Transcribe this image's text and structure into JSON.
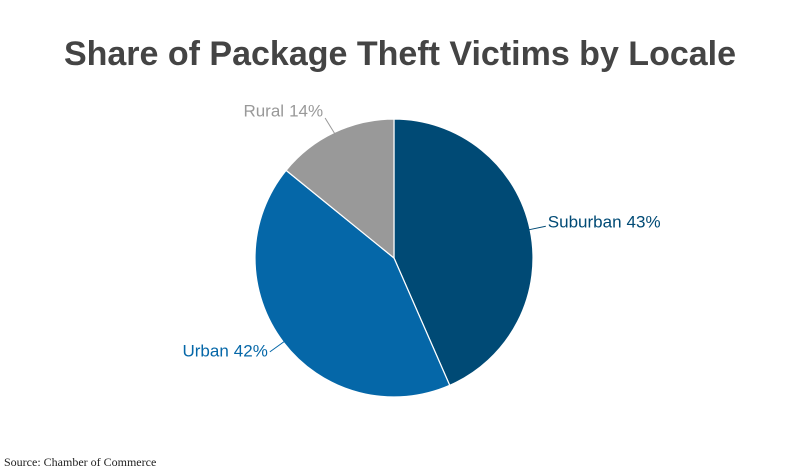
{
  "chart_data": {
    "type": "pie",
    "title": "Share of Package Theft Victims by Locale",
    "categories": [
      "Suburban",
      "Urban",
      "Rural"
    ],
    "values": [
      43,
      42,
      14
    ],
    "value_labels": [
      "43%",
      "42%",
      "14%"
    ],
    "colors": [
      "#004a75",
      "#0567a8",
      "#999999"
    ],
    "source": "Source: Chamber of Commerce"
  }
}
